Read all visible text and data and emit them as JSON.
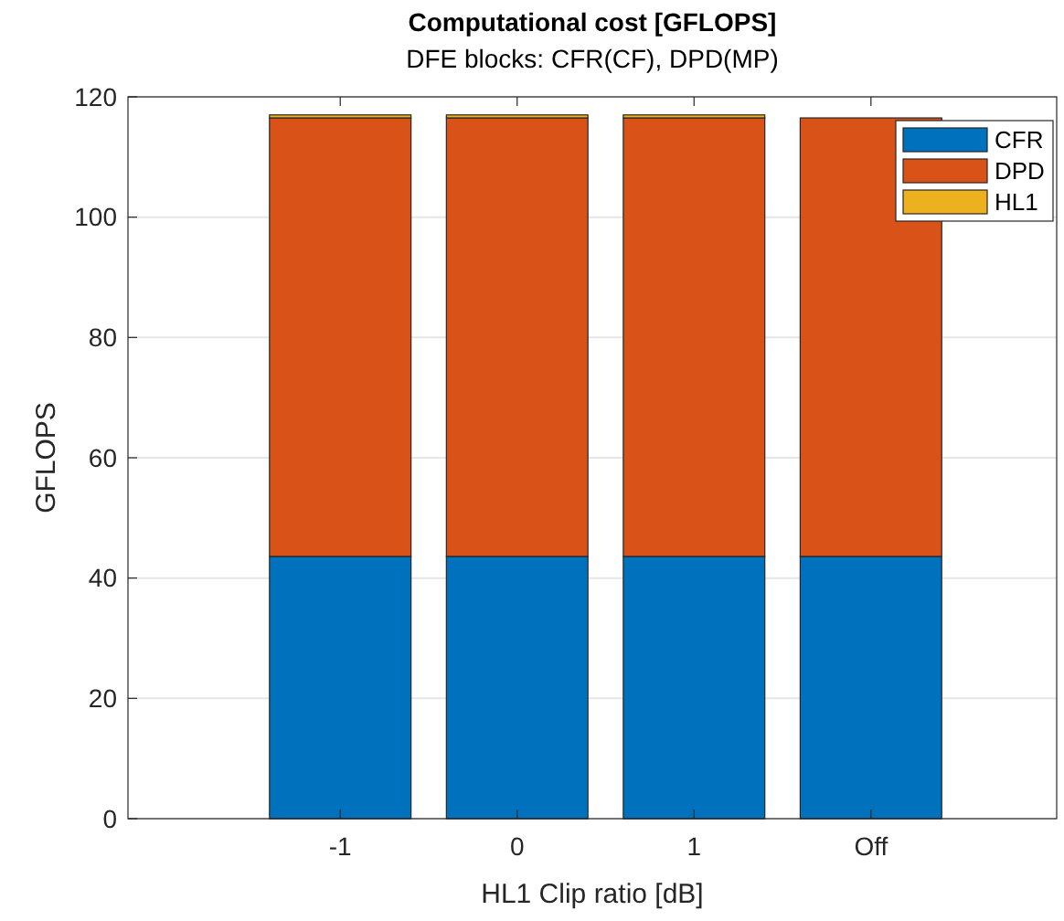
{
  "chart_data": {
    "type": "bar",
    "title": "Computational cost [GFLOPS]",
    "subtitle": "DFE blocks:  CFR(CF), DPD(MP)",
    "xlabel": "HL1 Clip ratio [dB]",
    "ylabel": "GFLOPS",
    "categories": [
      "-1",
      "0",
      "1",
      "Off"
    ],
    "stacked": true,
    "series": [
      {
        "name": "CFR",
        "color": "#0072bd",
        "values": [
          43.6,
          43.6,
          43.6,
          43.6
        ]
      },
      {
        "name": "DPD",
        "color": "#d95319",
        "values": [
          72.9,
          72.9,
          72.9,
          72.9
        ]
      },
      {
        "name": "HL1",
        "color": "#edb120",
        "values": [
          0.5,
          0.5,
          0.5,
          0
        ]
      }
    ],
    "ylim": [
      0,
      120
    ],
    "yticks": [
      0,
      20,
      40,
      60,
      80,
      100,
      120
    ],
    "grid": "y",
    "legend": "top right"
  }
}
